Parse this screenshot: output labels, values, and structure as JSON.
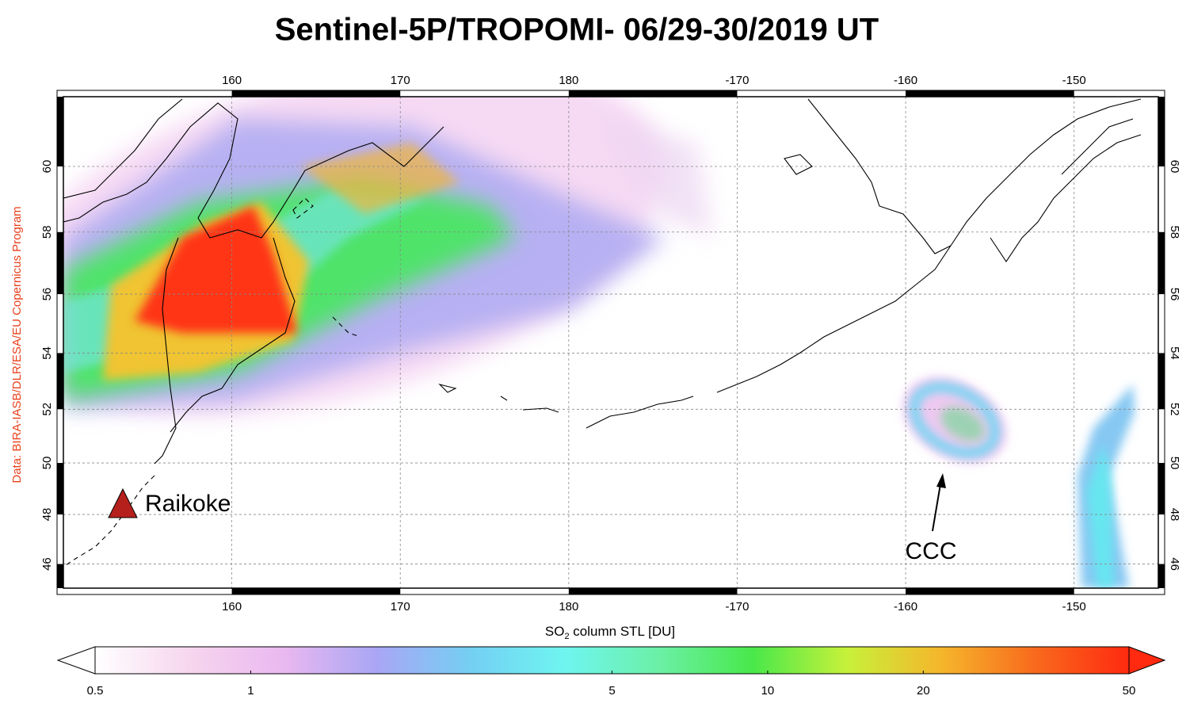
{
  "title": "Sentinel-5P/TROPOMI- 06/29-30/2019 UT",
  "credit": "Data: BIRA-IASB/DLR/ESA/EU Copernicus Program",
  "map": {
    "projection": "mercator",
    "lon_range": [
      150,
      -145
    ],
    "lat_range": [
      45,
      62
    ],
    "lon_ticks": [
      160,
      170,
      180,
      -170,
      -160,
      -150
    ],
    "lat_ticks": [
      46,
      48,
      50,
      52,
      54,
      56,
      58,
      60
    ],
    "grid": true
  },
  "annotations": {
    "volcano": "Raikoke",
    "cloud": "CCC"
  },
  "colorbar": {
    "label_main": "SO",
    "label_sub": "2",
    "label_rest": " column STL [DU]",
    "scale": "log",
    "range": [
      0.5,
      50
    ],
    "ticks": [
      0.5,
      1,
      5,
      10,
      20,
      50
    ],
    "colors": [
      "#ffffff",
      "#f6d6ee",
      "#eab8f0",
      "#a9a6f4",
      "#74cff3",
      "#6ff5f0",
      "#6bf0a6",
      "#49e84a",
      "#c7f13a",
      "#f5b62b",
      "#f86a1d",
      "#ff2a10"
    ]
  }
}
